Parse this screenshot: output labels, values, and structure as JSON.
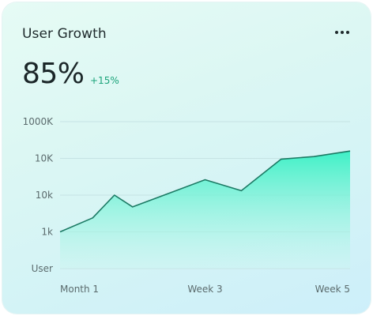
{
  "card": {
    "title": "User Growth",
    "metric": "85%",
    "delta": "+15%",
    "menu_icon": "more-horizontal-icon"
  },
  "colors": {
    "line": "#1c7a64",
    "area_top": "#3ef0c6",
    "area_bottom": "#c9f6ee",
    "grid": "#c6e3e4",
    "tick_text": "#5b6b6d",
    "delta": "#1aa37a"
  },
  "chart_data": {
    "type": "area",
    "title": "User Growth",
    "xlabel": "",
    "ylabel": "",
    "grid": true,
    "y_tick_labels": [
      "User",
      "1k",
      "10k",
      "10K",
      "1000K"
    ],
    "x_tick_labels": [
      "Month 1",
      "Week 3",
      "Week 5"
    ],
    "x_tick_positions": [
      1,
      3,
      5
    ],
    "xlim": [
      1,
      5
    ],
    "ylim": [
      0,
      4
    ],
    "x": [
      1,
      1.45,
      1.75,
      2.0,
      2.5,
      3.0,
      3.5,
      4.05,
      4.5,
      5.0
    ],
    "y": [
      1.0,
      1.38,
      2.0,
      1.68,
      2.05,
      2.42,
      2.12,
      2.98,
      3.05,
      3.2
    ],
    "series": [
      {
        "values": [
          1.0,
          1.38,
          2.0,
          1.68,
          2.05,
          2.42,
          2.12,
          2.98,
          3.05,
          3.2
        ]
      }
    ]
  }
}
